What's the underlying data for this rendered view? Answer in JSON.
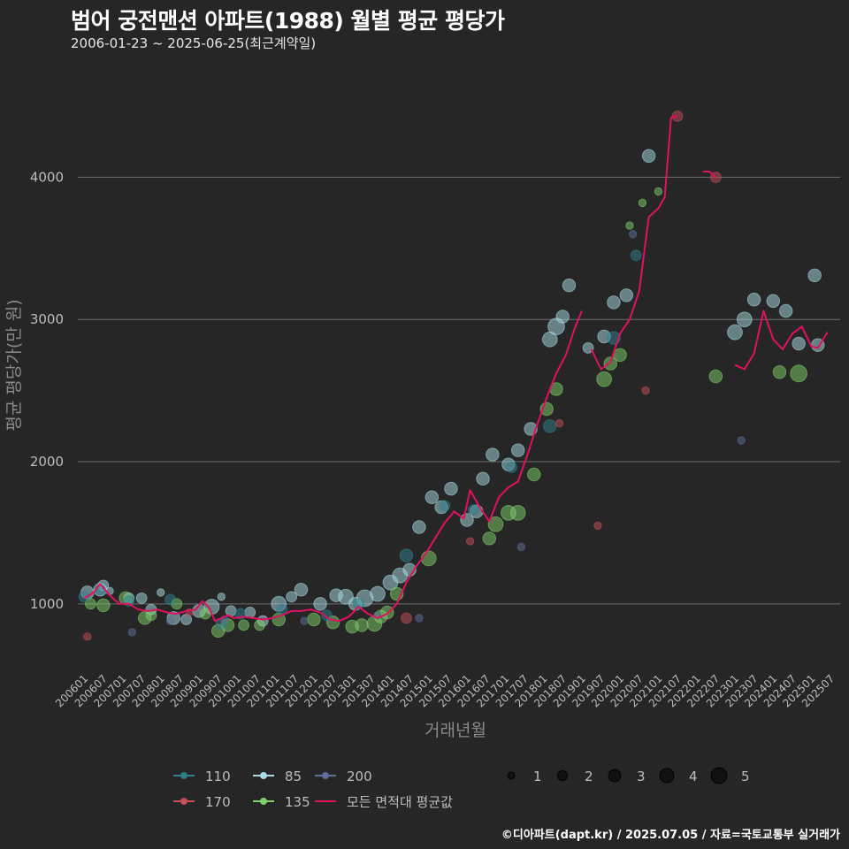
{
  "header": {
    "title": "범어 궁전맨션 아파트(1988) 월별 평균 평당가",
    "subtitle": "2006-01-23 ~ 2025-06-25(최근계약일)"
  },
  "footer": "©디아파트(dapt.kr) / 2025.07.05 / 자료=국토교통부 실거래가",
  "chart_data": {
    "type": "scatter",
    "title": "범어 궁전맨션 아파트(1988) 월별 평균 평당가",
    "subtitle": "2006-01-23 ~ 2025-06-25(최근계약일)",
    "xlabel": "거래년월",
    "ylabel": "평균 평당가(만 원)",
    "ylim": [
      520,
      4780
    ],
    "yticks": [
      1000,
      2000,
      3000,
      4000
    ],
    "xlim": [
      "2005-11",
      "2025-10"
    ],
    "xticks": [
      "200601",
      "200607",
      "200701",
      "200707",
      "200801",
      "200807",
      "200901",
      "200907",
      "201001",
      "201007",
      "201101",
      "201107",
      "201201",
      "201207",
      "201301",
      "201307",
      "201401",
      "201407",
      "201501",
      "201507",
      "201601",
      "201607",
      "201701",
      "201707",
      "201801",
      "201807",
      "201901",
      "201907",
      "202001",
      "202007",
      "202101",
      "202107",
      "202201",
      "202207",
      "202301",
      "202307",
      "202401",
      "202407",
      "202501",
      "202507"
    ],
    "grid": "horizontal",
    "colors": {
      "background": "#262626",
      "grid": "#6e6e6e",
      "avg_line": "#e0115f"
    },
    "legend_area": {
      "title": "",
      "placement": "bottom",
      "entries": [
        {
          "label": "110",
          "color": "#2f7f8f"
        },
        {
          "label": "170",
          "color": "#c44e55"
        },
        {
          "label": "85",
          "color": "#a8dbe3"
        },
        {
          "label": "135",
          "color": "#7fcf6a"
        },
        {
          "label": "200",
          "color": "#5d6f9a"
        },
        {
          "label": "모든 면적대 평균값",
          "color": "#e0115f"
        }
      ]
    },
    "legend_size": {
      "placement": "bottom",
      "entries": [
        {
          "label": "1",
          "size": 1
        },
        {
          "label": "2",
          "size": 2
        },
        {
          "label": "3",
          "size": 3
        },
        {
          "label": "4",
          "size": 4
        },
        {
          "label": "5",
          "size": 5
        }
      ]
    },
    "series": [
      {
        "name": "85",
        "color": "#a8dbe3",
        "points": [
          [
            "2006-02",
            1080,
            3
          ],
          [
            "2006-06",
            1100,
            3
          ],
          [
            "2006-07",
            1130,
            2
          ],
          [
            "2006-09",
            1090,
            1
          ],
          [
            "2007-03",
            1040,
            2
          ],
          [
            "2007-07",
            1040,
            2
          ],
          [
            "2007-10",
            960,
            2
          ],
          [
            "2008-01",
            1080,
            1
          ],
          [
            "2008-05",
            900,
            3
          ],
          [
            "2008-09",
            890,
            2
          ],
          [
            "2009-01",
            950,
            3
          ],
          [
            "2009-05",
            980,
            4
          ],
          [
            "2009-08",
            1050,
            1
          ],
          [
            "2009-11",
            950,
            2
          ],
          [
            "2010-05",
            940,
            2
          ],
          [
            "2010-09",
            880,
            2
          ],
          [
            "2011-02",
            1000,
            4
          ],
          [
            "2011-06",
            1050,
            2
          ],
          [
            "2011-09",
            1100,
            3
          ],
          [
            "2012-03",
            1000,
            3
          ],
          [
            "2012-08",
            1060,
            3
          ],
          [
            "2012-11",
            1050,
            4
          ],
          [
            "2013-02",
            1000,
            3
          ],
          [
            "2013-05",
            1040,
            5
          ],
          [
            "2013-09",
            1070,
            4
          ],
          [
            "2014-01",
            1150,
            4
          ],
          [
            "2014-04",
            1200,
            4
          ],
          [
            "2014-07",
            1240,
            3
          ],
          [
            "2014-10",
            1540,
            3
          ],
          [
            "2015-02",
            1750,
            3
          ],
          [
            "2015-05",
            1680,
            3
          ],
          [
            "2015-08",
            1810,
            3
          ],
          [
            "2016-01",
            1590,
            3
          ],
          [
            "2016-04",
            1650,
            3
          ],
          [
            "2016-06",
            1880,
            3
          ],
          [
            "2016-09",
            2050,
            3
          ],
          [
            "2017-02",
            1980,
            3
          ],
          [
            "2017-05",
            2080,
            3
          ],
          [
            "2017-09",
            2230,
            3
          ],
          [
            "2018-03",
            2860,
            4
          ],
          [
            "2018-05",
            2950,
            5
          ],
          [
            "2018-07",
            3020,
            3
          ],
          [
            "2018-09",
            3240,
            3
          ],
          [
            "2019-03",
            2800,
            2
          ],
          [
            "2019-08",
            2880,
            3
          ],
          [
            "2019-11",
            3120,
            3
          ],
          [
            "2020-03",
            3170,
            3
          ],
          [
            "2020-10",
            4150,
            3
          ],
          [
            "2023-01",
            2910,
            4
          ],
          [
            "2023-04",
            3000,
            4
          ],
          [
            "2023-07",
            3140,
            3
          ],
          [
            "2024-01",
            3130,
            3
          ],
          [
            "2024-05",
            3060,
            3
          ],
          [
            "2024-09",
            2830,
            3
          ],
          [
            "2025-02",
            3310,
            3
          ],
          [
            "2025-03",
            2820,
            3
          ]
        ]
      },
      {
        "name": "135",
        "color": "#7fcf6a",
        "points": [
          [
            "2006-03",
            1000,
            2
          ],
          [
            "2006-07",
            990,
            3
          ],
          [
            "2007-02",
            1040,
            3
          ],
          [
            "2007-08",
            900,
            3
          ],
          [
            "2007-10",
            920,
            2
          ],
          [
            "2008-06",
            1000,
            2
          ],
          [
            "2009-03",
            930,
            2
          ],
          [
            "2009-07",
            810,
            3
          ],
          [
            "2009-10",
            850,
            3
          ],
          [
            "2010-03",
            850,
            2
          ],
          [
            "2010-08",
            850,
            2
          ],
          [
            "2011-02",
            890,
            3
          ],
          [
            "2012-01",
            890,
            3
          ],
          [
            "2012-07",
            870,
            3
          ],
          [
            "2013-01",
            840,
            3
          ],
          [
            "2013-04",
            850,
            3
          ],
          [
            "2013-08",
            860,
            4
          ],
          [
            "2013-10",
            910,
            3
          ],
          [
            "2013-12",
            940,
            3
          ],
          [
            "2014-03",
            1070,
            3
          ],
          [
            "2015-01",
            1320,
            4
          ],
          [
            "2016-08",
            1460,
            3
          ],
          [
            "2016-10",
            1560,
            4
          ],
          [
            "2017-02",
            1640,
            4
          ],
          [
            "2017-05",
            1640,
            4
          ],
          [
            "2017-10",
            1910,
            3
          ],
          [
            "2018-02",
            2370,
            3
          ],
          [
            "2018-05",
            2510,
            3
          ],
          [
            "2019-08",
            2580,
            4
          ],
          [
            "2019-10",
            2690,
            3
          ],
          [
            "2020-01",
            2750,
            3
          ],
          [
            "2020-04",
            3660,
            1
          ],
          [
            "2020-08",
            3820,
            1
          ],
          [
            "2021-01",
            3900,
            1
          ],
          [
            "2022-07",
            2600,
            3
          ],
          [
            "2024-03",
            2630,
            3
          ],
          [
            "2024-09",
            2620,
            5
          ]
        ]
      },
      {
        "name": "110",
        "color": "#2f7f8f",
        "points": [
          [
            "2006-01",
            1050,
            2
          ],
          [
            "2006-06",
            1100,
            2
          ],
          [
            "2007-03",
            1020,
            2
          ],
          [
            "2008-04",
            1030,
            2
          ],
          [
            "2009-08",
            860,
            2
          ],
          [
            "2010-02",
            930,
            2
          ],
          [
            "2011-03",
            960,
            2
          ],
          [
            "2012-05",
            920,
            2
          ],
          [
            "2013-03",
            1000,
            2
          ],
          [
            "2014-06",
            1340,
            3
          ],
          [
            "2015-06",
            1690,
            2
          ],
          [
            "2016-03",
            1660,
            2
          ],
          [
            "2017-03",
            1960,
            2
          ],
          [
            "2018-03",
            2250,
            3
          ],
          [
            "2019-11",
            2870,
            3
          ],
          [
            "2020-06",
            3450,
            2
          ]
        ]
      },
      {
        "name": "170",
        "color": "#c44e55",
        "points": [
          [
            "2006-02",
            770,
            1
          ],
          [
            "2008-10",
            940,
            1
          ],
          [
            "2014-06",
            900,
            2
          ],
          [
            "2016-02",
            1440,
            1
          ],
          [
            "2018-06",
            2270,
            1
          ],
          [
            "2019-06",
            1550,
            1
          ],
          [
            "2020-09",
            2500,
            1
          ],
          [
            "2021-07",
            4430,
            2
          ],
          [
            "2022-07",
            4000,
            2
          ]
        ]
      },
      {
        "name": "200",
        "color": "#5d6f9a",
        "points": [
          [
            "2007-04",
            800,
            1
          ],
          [
            "2008-04",
            880,
            1
          ],
          [
            "2009-09",
            890,
            1
          ],
          [
            "2011-10",
            880,
            1
          ],
          [
            "2013-09",
            920,
            1
          ],
          [
            "2014-10",
            900,
            1
          ],
          [
            "2017-06",
            1400,
            1
          ],
          [
            "2020-05",
            3600,
            1
          ],
          [
            "2023-03",
            2150,
            1
          ]
        ]
      }
    ],
    "avg_line": {
      "name": "모든 면적대 평균값",
      "color": "#e0115f",
      "segments": [
        [
          [
            "2006-01",
            1040
          ],
          [
            "2006-04",
            1080
          ],
          [
            "2006-06",
            1140
          ],
          [
            "2006-09",
            1060
          ],
          [
            "2006-12",
            1000
          ],
          [
            "2007-03",
            1000
          ],
          [
            "2007-06",
            960
          ],
          [
            "2007-09",
            950
          ],
          [
            "2007-12",
            960
          ],
          [
            "2008-03",
            940
          ],
          [
            "2008-06",
            930
          ],
          [
            "2008-09",
            950
          ],
          [
            "2008-12",
            960
          ],
          [
            "2009-02",
            1020
          ],
          [
            "2009-04",
            980
          ],
          [
            "2009-06",
            880
          ],
          [
            "2009-08",
            900
          ],
          [
            "2009-10",
            920
          ],
          [
            "2009-12",
            900
          ],
          [
            "2010-03",
            910
          ],
          [
            "2010-06",
            900
          ],
          [
            "2010-09",
            890
          ],
          [
            "2010-12",
            900
          ],
          [
            "2011-03",
            920
          ],
          [
            "2011-06",
            950
          ],
          [
            "2011-09",
            950
          ],
          [
            "2011-12",
            960
          ],
          [
            "2012-03",
            940
          ],
          [
            "2012-06",
            890
          ],
          [
            "2012-09",
            880
          ],
          [
            "2012-12",
            910
          ],
          [
            "2013-03",
            980
          ],
          [
            "2013-06",
            930
          ],
          [
            "2013-09",
            900
          ],
          [
            "2013-12",
            930
          ],
          [
            "2014-03",
            1000
          ],
          [
            "2014-06",
            1150
          ],
          [
            "2014-09",
            1260
          ],
          [
            "2014-12",
            1350
          ],
          [
            "2015-03",
            1460
          ],
          [
            "2015-06",
            1570
          ],
          [
            "2015-09",
            1650
          ],
          [
            "2015-12",
            1600
          ],
          [
            "2016-02",
            1800
          ],
          [
            "2016-05",
            1680
          ],
          [
            "2016-08",
            1580
          ],
          [
            "2016-11",
            1750
          ],
          [
            "2017-02",
            1820
          ],
          [
            "2017-05",
            1860
          ],
          [
            "2017-08",
            2050
          ],
          [
            "2017-11",
            2260
          ],
          [
            "2018-02",
            2450
          ],
          [
            "2018-05",
            2620
          ],
          [
            "2018-08",
            2750
          ],
          [
            "2018-11",
            2950
          ],
          [
            "2019-01",
            3060
          ]
        ],
        [
          [
            "2019-04",
            2790
          ],
          [
            "2019-07",
            2650
          ],
          [
            "2019-10",
            2700
          ],
          [
            "2020-01",
            2900
          ],
          [
            "2020-04",
            3000
          ],
          [
            "2020-07",
            3200
          ],
          [
            "2020-10",
            3720
          ],
          [
            "2021-01",
            3780
          ],
          [
            "2021-03",
            3860
          ],
          [
            "2021-05",
            4420
          ],
          [
            "2021-07",
            4430
          ]
        ],
        [
          [
            "2022-03",
            4040
          ],
          [
            "2022-05",
            4040
          ],
          [
            "2022-07",
            4000
          ]
        ],
        [
          [
            "2023-01",
            2680
          ],
          [
            "2023-04",
            2650
          ],
          [
            "2023-07",
            2760
          ],
          [
            "2023-10",
            3060
          ],
          [
            "2024-01",
            2860
          ],
          [
            "2024-04",
            2790
          ],
          [
            "2024-07",
            2900
          ],
          [
            "2024-10",
            2950
          ],
          [
            "2025-01",
            2810
          ],
          [
            "2025-03",
            2800
          ],
          [
            "2025-06",
            2910
          ]
        ]
      ]
    }
  }
}
